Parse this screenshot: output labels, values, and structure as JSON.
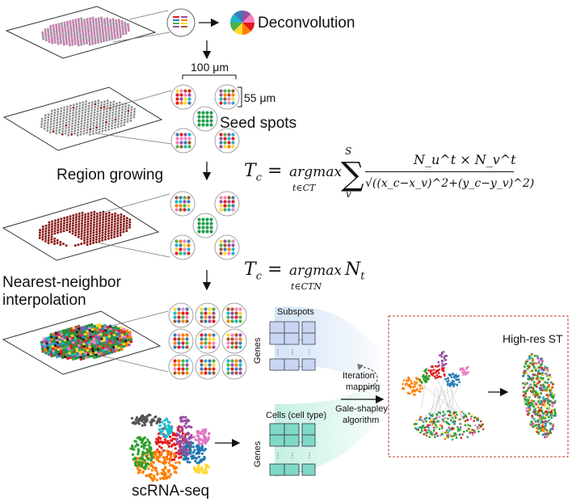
{
  "labels": {
    "deconvolution": "Deconvolution",
    "spacing": "100 μm",
    "spot_size": "55 μm",
    "seed_spots": "Seed spots",
    "region_growing": "Region growing",
    "nn_line1": "Nearest-neighbor",
    "nn_line2": "interpolation",
    "subspots": "Subspots",
    "genes_top": "Genes",
    "cells": "Cells (cell type)",
    "genes_bottom": "Genes",
    "iteration_line1": "Iteration",
    "iteration_line2": "mapping",
    "gs_line1": "Gale-shapley",
    "gs_line2": "algorithm",
    "high_res": "High-res ST",
    "scrna": "scRNA-seq"
  },
  "equations": {
    "eq1_lhs": "T",
    "eq1_sub": "c",
    "eq1_op": "argmax",
    "eq1_under": "t∈CT",
    "eq1_sum_top": "S",
    "eq1_sum_bottom": "v",
    "eq1_num": "N_u^t × N_v^t",
    "eq1_den": "√((x_c−x_v)^2+(y_c−y_v)^2)",
    "eq2_lhs": "T",
    "eq2_sub": "c",
    "eq2_op": "argmax",
    "eq2_rhs": "N",
    "eq2_rhs_sub": "t",
    "eq2_under": "t∈CTN"
  },
  "colors": {
    "spot_gray": "#8e8e8e",
    "spot_pink": "#c77fb0",
    "spot_darkred": "#8a1c1c",
    "seed_green": "#1f9e4a",
    "matrix_blue": "#c9d6f2",
    "matrix_teal": "#7fd9c6",
    "dashed_box": "#c0392b"
  }
}
